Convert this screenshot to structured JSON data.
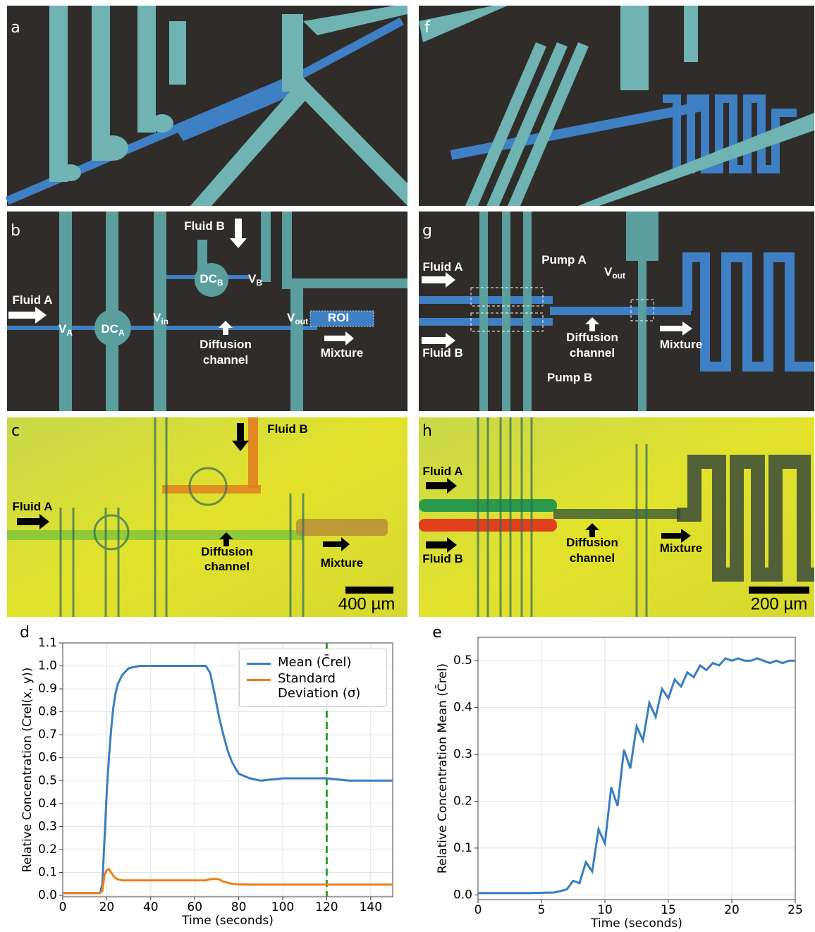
{
  "panels": {
    "a": {
      "label": "a",
      "notes": []
    },
    "f": {
      "label": "f",
      "notes": []
    },
    "b": {
      "label": "b",
      "notes": [
        {
          "text": "Fluid B"
        },
        {
          "text": "DC",
          "sub": "B"
        },
        {
          "text": "V",
          "sub": "B"
        },
        {
          "text": "Fluid A"
        },
        {
          "text": "V",
          "sub": "A"
        },
        {
          "text": "DC",
          "sub": "A"
        },
        {
          "text": "V",
          "sub": "in"
        },
        {
          "text": "V",
          "sub": "out"
        },
        {
          "text": "ROI"
        },
        {
          "text": "Diffusion"
        },
        {
          "text": "channel"
        },
        {
          "text": "Mixture"
        }
      ]
    },
    "g": {
      "label": "g",
      "notes": [
        {
          "text": "Fluid A"
        },
        {
          "text": "Pump A"
        },
        {
          "text": "V",
          "sub": "out"
        },
        {
          "text": "Fluid B"
        },
        {
          "text": "Diffusion"
        },
        {
          "text": "channel"
        },
        {
          "text": "Mixture"
        },
        {
          "text": "Pump B"
        }
      ]
    },
    "c": {
      "label": "c",
      "notes": [
        {
          "text": "Fluid B"
        },
        {
          "text": "Fluid A"
        },
        {
          "text": "Diffusion"
        },
        {
          "text": "channel"
        },
        {
          "text": "Mixture"
        }
      ],
      "scale": "400 µm"
    },
    "h": {
      "label": "h",
      "notes": [
        {
          "text": "Fluid A"
        },
        {
          "text": "Fluid B"
        },
        {
          "text": "Diffusion"
        },
        {
          "text": "channel"
        },
        {
          "text": "Mixture"
        }
      ],
      "scale": "200 µm"
    }
  },
  "chart_data": [
    {
      "type": "line",
      "label": "d",
      "xlabel": "Time (seconds)",
      "ylabel": "Relative Concentration (Crel(x, y))",
      "xlim": [
        0,
        150
      ],
      "ylim": [
        0,
        1.1
      ],
      "xticks": [
        0,
        20,
        40,
        60,
        80,
        100,
        120,
        140
      ],
      "yticks": [
        {
          "value": 0,
          "label": "0.0"
        },
        0.1,
        0.2,
        0.3,
        0.4,
        0.5,
        0.6,
        0.7,
        0.8,
        0.9,
        {
          "value": 1,
          "label": "1.0"
        },
        1.1
      ],
      "grid": true,
      "legend": "upper right",
      "reference_line_x": 120,
      "reference_line_color": "#2ca02c",
      "x": [
        0,
        10,
        17,
        18,
        19,
        20,
        21,
        22,
        23,
        24,
        25,
        27,
        30,
        35,
        40,
        50,
        60,
        65,
        67,
        69,
        71,
        73,
        75,
        77,
        80,
        85,
        90,
        100,
        110,
        120,
        130,
        140,
        150
      ],
      "series": [
        {
          "name": "Mean (C̄rel)",
          "color": "#3a7ebf",
          "values": [
            0.01,
            0.01,
            0.01,
            0.05,
            0.25,
            0.45,
            0.6,
            0.72,
            0.82,
            0.88,
            0.92,
            0.96,
            0.99,
            1.0,
            1.0,
            1.0,
            1.0,
            1.0,
            0.97,
            0.88,
            0.78,
            0.7,
            0.63,
            0.58,
            0.53,
            0.51,
            0.5,
            0.51,
            0.51,
            0.51,
            0.5,
            0.5,
            0.5
          ]
        },
        {
          "name": "Standard Deviation (σ)",
          "color": "#f07f1a",
          "values": [
            0.01,
            0.01,
            0.01,
            0.02,
            0.09,
            0.11,
            0.115,
            0.1,
            0.085,
            0.075,
            0.07,
            0.065,
            0.065,
            0.065,
            0.065,
            0.065,
            0.065,
            0.065,
            0.07,
            0.072,
            0.07,
            0.06,
            0.055,
            0.05,
            0.048,
            0.047,
            0.047,
            0.047,
            0.047,
            0.047,
            0.047,
            0.047,
            0.047
          ]
        }
      ]
    },
    {
      "type": "line",
      "label": "e",
      "xlabel": "Time (seconds)",
      "ylabel": "Relative Concentration Mean (C̄rel)",
      "xlim": [
        0,
        25
      ],
      "ylim": [
        -0.01,
        0.55
      ],
      "xticks": [
        0,
        5,
        10,
        15,
        20,
        25
      ],
      "yticks": [
        {
          "value": 0,
          "label": "0.0"
        },
        0.1,
        0.2,
        0.3,
        0.4,
        0.5
      ],
      "grid": true,
      "color": "#3a7ebf",
      "x": [
        0,
        2,
        4,
        6,
        6.5,
        7,
        7.5,
        8,
        8.5,
        9,
        9.5,
        10,
        10.5,
        11,
        11.5,
        12,
        12.5,
        13,
        13.5,
        14,
        14.5,
        15,
        15.5,
        16,
        16.5,
        17,
        17.5,
        18,
        18.5,
        19,
        19.5,
        20,
        20.5,
        21,
        21.5,
        22,
        22.5,
        23,
        23.5,
        24,
        24.5,
        25
      ],
      "values": [
        0.004,
        0.004,
        0.004,
        0.005,
        0.008,
        0.012,
        0.03,
        0.025,
        0.07,
        0.05,
        0.14,
        0.11,
        0.23,
        0.19,
        0.31,
        0.27,
        0.36,
        0.33,
        0.41,
        0.38,
        0.44,
        0.42,
        0.46,
        0.445,
        0.475,
        0.465,
        0.49,
        0.48,
        0.495,
        0.49,
        0.505,
        0.5,
        0.505,
        0.5,
        0.5,
        0.505,
        0.5,
        0.495,
        0.5,
        0.495,
        0.5,
        0.5
      ]
    }
  ]
}
